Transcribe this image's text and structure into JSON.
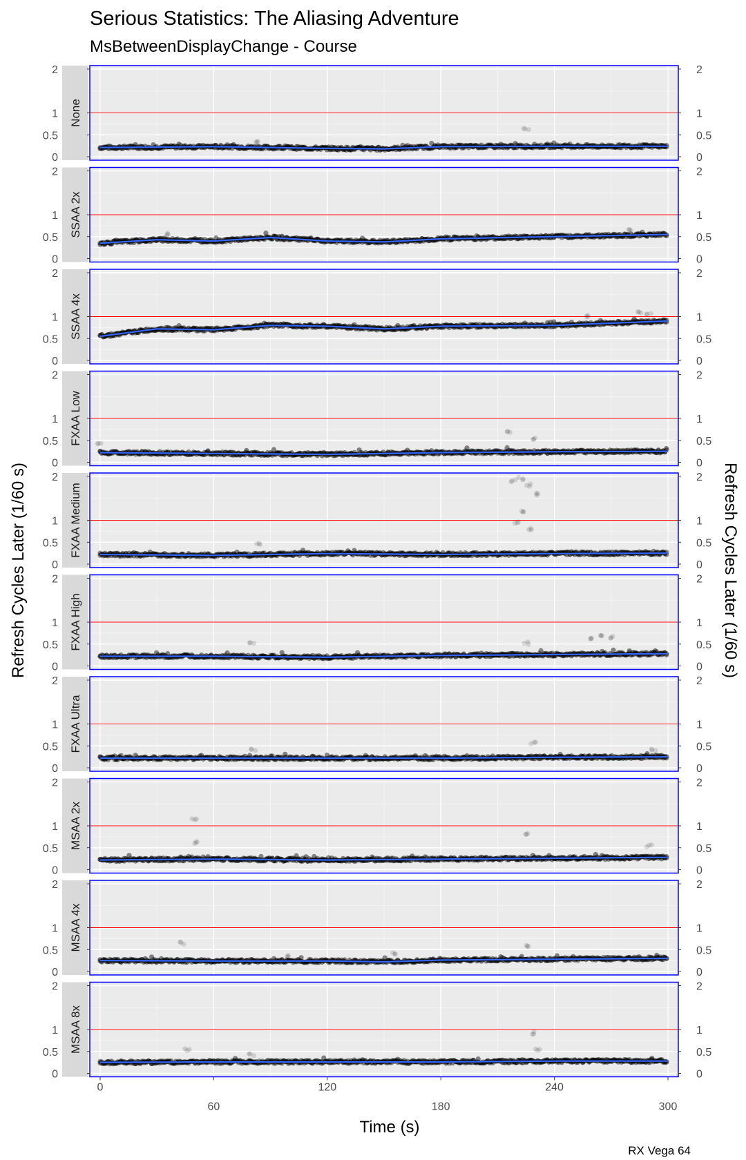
{
  "chart_data": {
    "type": "scatter",
    "title": "Serious Statistics: The Aliasing Adventure",
    "subtitle": "MsBetweenDisplayChange - Course",
    "xlabel": "Time (s)",
    "ylabel": "Refresh Cycles Later (1/60 s)",
    "ylabel_right": "Refresh Cycles Later (1/60 s)",
    "caption": "RX Vega 64",
    "xlim": [
      0,
      300
    ],
    "ylim": [
      0,
      2
    ],
    "x_ticks": [
      0,
      60,
      120,
      180,
      240,
      300
    ],
    "x_tick_labels": [
      "0",
      "60",
      "120",
      "180",
      "240",
      "300"
    ],
    "y_ticks": [
      0,
      0.5,
      1,
      2
    ],
    "y_tick_labels": [
      "0",
      "0.5",
      "1",
      "2"
    ],
    "reference_line": {
      "y": 1,
      "color": "#ff0000"
    },
    "grid": true,
    "legend": "none",
    "colors": {
      "panel_bg": "#ebebeb",
      "grid": "#ffffff",
      "panel_border": "#0000ff",
      "strip_bg": "#d9d9d9",
      "points": "#000000",
      "smooth": "#3366ff"
    },
    "series": [
      {
        "name": "None",
        "smooth": [
          [
            0,
            0.21
          ],
          [
            60,
            0.23
          ],
          [
            120,
            0.19
          ],
          [
            150,
            0.18
          ],
          [
            180,
            0.23
          ],
          [
            240,
            0.24
          ],
          [
            300,
            0.24
          ]
        ],
        "outliers": [
          [
            225,
            0.62
          ],
          [
            82,
            0.36
          ]
        ]
      },
      {
        "name": "SSAA 2x",
        "smooth": [
          [
            0,
            0.35
          ],
          [
            30,
            0.43
          ],
          [
            60,
            0.4
          ],
          [
            90,
            0.48
          ],
          [
            120,
            0.4
          ],
          [
            150,
            0.38
          ],
          [
            180,
            0.45
          ],
          [
            240,
            0.5
          ],
          [
            300,
            0.55
          ]
        ],
        "outliers": [
          [
            35,
            0.55
          ],
          [
            280,
            0.65
          ]
        ]
      },
      {
        "name": "SSAA 4x",
        "smooth": [
          [
            0,
            0.55
          ],
          [
            30,
            0.72
          ],
          [
            60,
            0.7
          ],
          [
            90,
            0.8
          ],
          [
            120,
            0.78
          ],
          [
            150,
            0.72
          ],
          [
            180,
            0.78
          ],
          [
            240,
            0.8
          ],
          [
            300,
            0.9
          ]
        ],
        "outliers": [
          [
            258,
            1.02
          ],
          [
            285,
            1.1
          ],
          [
            290,
            1.05
          ]
        ]
      },
      {
        "name": "FXAA Low",
        "smooth": [
          [
            0,
            0.22
          ],
          [
            60,
            0.2
          ],
          [
            120,
            0.18
          ],
          [
            180,
            0.22
          ],
          [
            240,
            0.24
          ],
          [
            300,
            0.25
          ]
        ],
        "outliers": [
          [
            216,
            0.68
          ],
          [
            230,
            0.55
          ],
          [
            0,
            0.45
          ]
        ]
      },
      {
        "name": "FXAA Medium",
        "smooth": [
          [
            0,
            0.22
          ],
          [
            60,
            0.2
          ],
          [
            120,
            0.24
          ],
          [
            180,
            0.22
          ],
          [
            240,
            0.24
          ],
          [
            300,
            0.25
          ]
        ],
        "outliers": [
          [
            218,
            1.9
          ],
          [
            222,
            1.95
          ],
          [
            226,
            1.8
          ],
          [
            230,
            1.6
          ],
          [
            224,
            1.2
          ],
          [
            220,
            0.95
          ],
          [
            228,
            0.8
          ],
          [
            84,
            0.45
          ]
        ]
      },
      {
        "name": "FXAA High",
        "smooth": [
          [
            0,
            0.22
          ],
          [
            60,
            0.22
          ],
          [
            120,
            0.2
          ],
          [
            180,
            0.24
          ],
          [
            240,
            0.26
          ],
          [
            300,
            0.28
          ]
        ],
        "outliers": [
          [
            260,
            0.62
          ],
          [
            265,
            0.7
          ],
          [
            270,
            0.66
          ],
          [
            225,
            0.52
          ],
          [
            80,
            0.52
          ]
        ]
      },
      {
        "name": "FXAA Ultra",
        "smooth": [
          [
            0,
            0.22
          ],
          [
            60,
            0.22
          ],
          [
            120,
            0.22
          ],
          [
            180,
            0.22
          ],
          [
            240,
            0.24
          ],
          [
            300,
            0.25
          ]
        ],
        "outliers": [
          [
            229,
            0.58
          ],
          [
            81,
            0.42
          ],
          [
            292,
            0.4
          ]
        ]
      },
      {
        "name": "MSAA 2x",
        "smooth": [
          [
            0,
            0.22
          ],
          [
            60,
            0.24
          ],
          [
            120,
            0.22
          ],
          [
            180,
            0.24
          ],
          [
            240,
            0.26
          ],
          [
            300,
            0.28
          ]
        ],
        "outliers": [
          [
            50,
            1.15
          ],
          [
            50,
            0.62
          ],
          [
            225,
            0.82
          ],
          [
            290,
            0.55
          ]
        ]
      },
      {
        "name": "MSAA 4x",
        "smooth": [
          [
            0,
            0.25
          ],
          [
            60,
            0.24
          ],
          [
            120,
            0.24
          ],
          [
            150,
            0.22
          ],
          [
            180,
            0.26
          ],
          [
            240,
            0.28
          ],
          [
            300,
            0.3
          ]
        ],
        "outliers": [
          [
            43,
            0.65
          ],
          [
            225,
            0.58
          ],
          [
            155,
            0.42
          ],
          [
            100,
            0.36
          ]
        ]
      },
      {
        "name": "MSAA 8x",
        "smooth": [
          [
            0,
            0.25
          ],
          [
            60,
            0.26
          ],
          [
            120,
            0.26
          ],
          [
            180,
            0.26
          ],
          [
            240,
            0.28
          ],
          [
            300,
            0.28
          ]
        ],
        "outliers": [
          [
            46,
            0.55
          ],
          [
            229,
            0.92
          ],
          [
            231,
            0.55
          ],
          [
            80,
            0.42
          ]
        ]
      }
    ]
  }
}
